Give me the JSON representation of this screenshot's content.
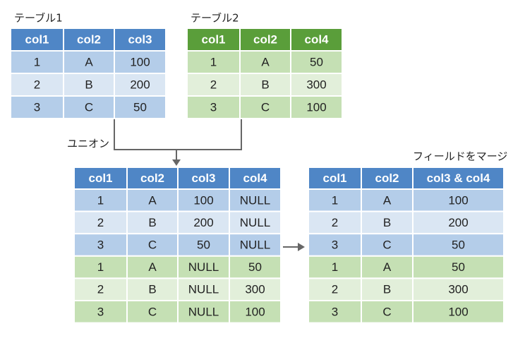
{
  "table1": {
    "title": "テーブル1",
    "header_color": "#4f86c6",
    "columns": [
      "col1",
      "col2",
      "col3"
    ],
    "rows": [
      [
        1,
        "A",
        100
      ],
      [
        2,
        "B",
        200
      ],
      [
        3,
        "C",
        50
      ]
    ],
    "row_fills": [
      "#b4cde9",
      "#dae6f3",
      "#b4cde9"
    ]
  },
  "table2": {
    "title": "テーブル2",
    "header_color": "#5a9e3a",
    "columns": [
      "col1",
      "col2",
      "col4"
    ],
    "rows": [
      [
        1,
        "A",
        50
      ],
      [
        2,
        "B",
        300
      ],
      [
        3,
        "C",
        100
      ]
    ],
    "row_fills": [
      "#c5e0b4",
      "#e2efda",
      "#c5e0b4"
    ]
  },
  "union": {
    "title": "ユニオン",
    "header_color": "#4f86c6",
    "columns": [
      "col1",
      "col2",
      "col3",
      "col4"
    ],
    "rows": [
      [
        1,
        "A",
        100,
        "NULL"
      ],
      [
        2,
        "B",
        200,
        "NULL"
      ],
      [
        3,
        "C",
        50,
        "NULL"
      ],
      [
        1,
        "A",
        "NULL",
        50
      ],
      [
        2,
        "B",
        "NULL",
        300
      ],
      [
        3,
        "C",
        "NULL",
        100
      ]
    ],
    "row_fills": [
      "#b4cde9",
      "#dae6f3",
      "#b4cde9",
      "#c5e0b4",
      "#e2efda",
      "#c5e0b4"
    ]
  },
  "merged": {
    "title": "フィールドをマージ",
    "header_color": "#4f86c6",
    "columns": [
      "col1",
      "col2",
      "col3 & col4"
    ],
    "rows": [
      [
        1,
        "A",
        100
      ],
      [
        2,
        "B",
        200
      ],
      [
        3,
        "C",
        50
      ],
      [
        1,
        "A",
        50
      ],
      [
        2,
        "B",
        300
      ],
      [
        3,
        "C",
        100
      ]
    ],
    "row_fills": [
      "#b4cde9",
      "#dae6f3",
      "#b4cde9",
      "#c5e0b4",
      "#e2efda",
      "#c5e0b4"
    ]
  }
}
